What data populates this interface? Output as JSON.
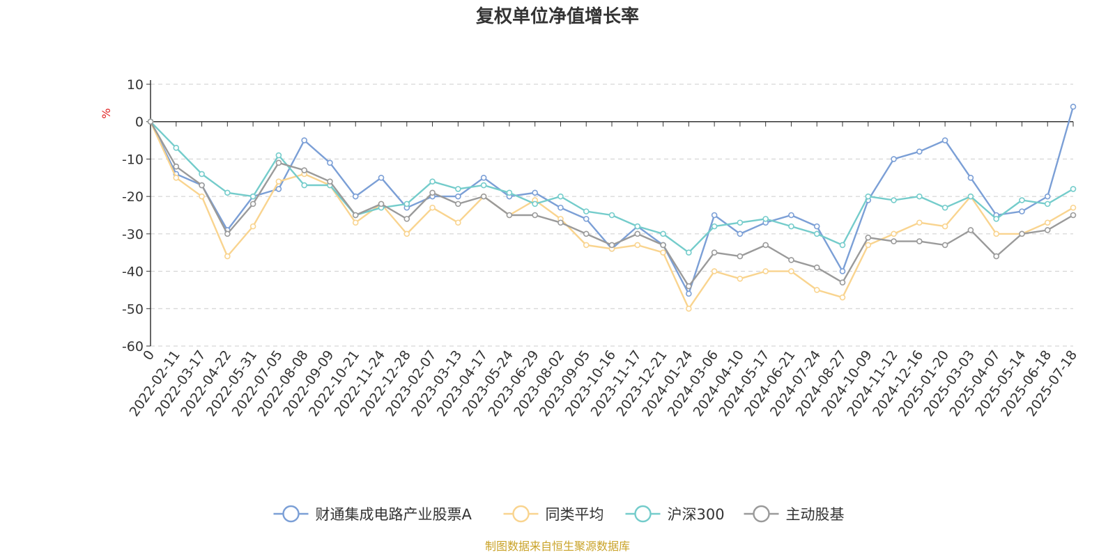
{
  "chart_data": {
    "type": "line",
    "title": "复权单位净值增长率",
    "ylabel": "%",
    "ylim": [
      -60,
      10
    ],
    "yticks": [
      10,
      0,
      -10,
      -20,
      -30,
      -40,
      -50,
      -60
    ],
    "x_tick_labels": [
      "0",
      "2022-02-11",
      "2022-03-17",
      "2022-04-22",
      "2022-05-31",
      "2022-07-05",
      "2022-08-08",
      "2022-09-09",
      "2022-10-21",
      "2022-11-24",
      "2022-12-28",
      "2023-02-07",
      "2023-03-13",
      "2023-04-17",
      "2023-05-24",
      "2023-06-29",
      "2023-08-02",
      "2023-09-05",
      "2023-10-16",
      "2023-11-17",
      "2023-12-21",
      "2024-01-24",
      "2024-03-06",
      "2024-04-10",
      "2024-05-17",
      "2024-06-21",
      "2024-07-24",
      "2024-08-27",
      "2024-10-09",
      "2024-11-12",
      "2024-12-16",
      "2025-01-20",
      "2025-03-03",
      "2025-04-07",
      "2025-05-14",
      "2025-06-18",
      "2025-07-18"
    ],
    "x": [
      "0",
      "2022-02-11",
      "2022-03-17",
      "2022-04-22",
      "2022-05-31",
      "2022-07-05",
      "2022-08-08",
      "2022-09-09",
      "2022-10-21",
      "2022-11-24",
      "2022-12-28",
      "2023-02-07",
      "2023-03-13",
      "2023-04-17",
      "2023-05-24",
      "2023-06-29",
      "2023-08-02",
      "2023-09-05",
      "2023-10-16",
      "2023-11-17",
      "2023-12-21",
      "2024-01-24",
      "2024-03-06",
      "2024-04-10",
      "2024-05-17",
      "2024-06-21",
      "2024-07-24",
      "2024-08-27",
      "2024-10-09",
      "2024-11-12",
      "2024-12-16",
      "2025-01-20",
      "2025-03-03",
      "2025-04-07",
      "2025-05-14",
      "2025-06-18",
      "2025-07-18"
    ],
    "series": [
      {
        "name": "财通集成电路产业股票A",
        "color": "#7b9fd6",
        "values": [
          0,
          -14,
          -17,
          -29,
          -20,
          -18,
          -5,
          -11,
          -20,
          -15,
          -23,
          -20,
          -20,
          -15,
          -20,
          -19,
          -23,
          -26,
          -34,
          -28,
          -33,
          -46,
          -25,
          -30,
          -27,
          -25,
          -28,
          -40,
          -21,
          -10,
          -8,
          -5,
          -15,
          -25,
          -24,
          -20,
          4
        ]
      },
      {
        "name": "同类平均",
        "color": "#f9d48f",
        "values": [
          0,
          -15,
          -20,
          -36,
          -28,
          -16,
          -14,
          -17,
          -27,
          -22,
          -30,
          -23,
          -27,
          -20,
          -25,
          -21,
          -26,
          -33,
          -34,
          -33,
          -35,
          -50,
          -40,
          -42,
          -40,
          -40,
          -45,
          -47,
          -33,
          -30,
          -27,
          -28,
          -20,
          -30,
          -30,
          -27,
          -23
        ]
      },
      {
        "name": "沪深300",
        "color": "#74cccb",
        "values": [
          0,
          -7,
          -14,
          -19,
          -20,
          -9,
          -17,
          -17,
          -25,
          -23,
          -22,
          -16,
          -18,
          -17,
          -19,
          -22,
          -20,
          -24,
          -25,
          -28,
          -30,
          -35,
          -28,
          -27,
          -26,
          -28,
          -30,
          -33,
          -20,
          -21,
          -20,
          -23,
          -20,
          -26,
          -21,
          -22,
          -18
        ]
      },
      {
        "name": "主动股基",
        "color": "#9a9a9a",
        "values": [
          0,
          -12,
          -17,
          -30,
          -22,
          -11,
          -13,
          -16,
          -25,
          -22,
          -26,
          -19,
          -22,
          -20,
          -25,
          -25,
          -27,
          -30,
          -33,
          -30,
          -33,
          -44,
          -35,
          -36,
          -33,
          -37,
          -39,
          -43,
          -31,
          -32,
          -32,
          -33,
          -29,
          -36,
          -30,
          -29,
          -25
        ]
      }
    ],
    "legend_position": "bottom",
    "grid": true
  },
  "source_note": "制图数据来自恒生聚源数据库"
}
